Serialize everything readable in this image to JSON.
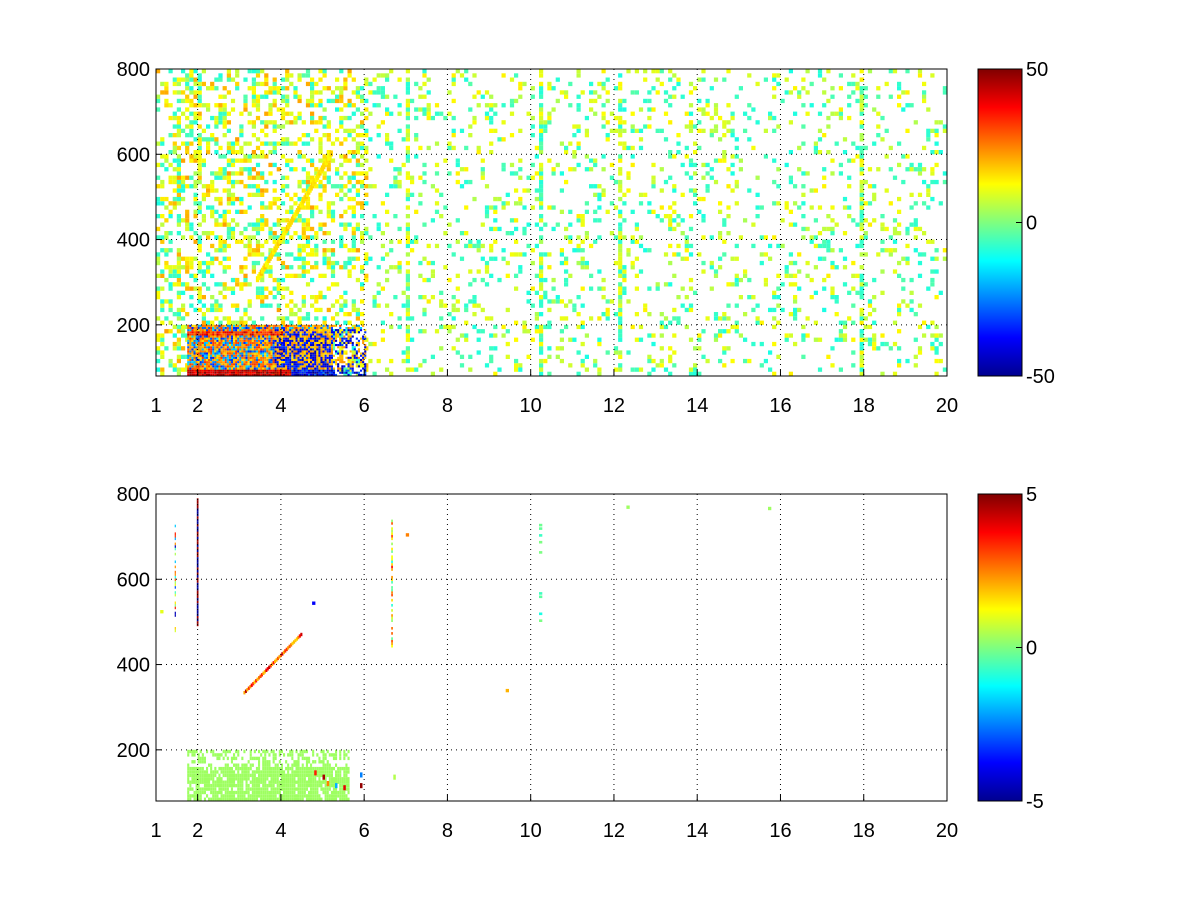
{
  "chart_data": [
    {
      "type": "heatmap",
      "title": "",
      "xlabel": "",
      "ylabel": "",
      "xlim": [
        1,
        20
      ],
      "ylim": [
        80,
        800
      ],
      "x_ticks": [
        1,
        2,
        4,
        6,
        8,
        10,
        12,
        14,
        16,
        18,
        20
      ],
      "y_ticks": [
        200,
        400,
        600,
        800
      ],
      "grid": true,
      "colormap": "jet",
      "clim": [
        -50,
        50
      ],
      "colorbar_ticks": [
        50,
        0,
        -50
      ],
      "colorbar_placement": "right",
      "description": "Dense noisy field of values; strong activity (up to +50 and down to -50) concentrated at x 2-5, y 80-200; sparse scattered near-zero/positive values elsewhere; diagonal band of positive values from about (3.5,300) to (5,600); vertical streaks near x 1.5, 2, 7, 10.2, 12, 18."
    },
    {
      "type": "heatmap",
      "title": "",
      "xlabel": "",
      "ylabel": "",
      "xlim": [
        1,
        20
      ],
      "ylim": [
        80,
        800
      ],
      "x_ticks": [
        1,
        2,
        4,
        6,
        8,
        10,
        12,
        14,
        16,
        18,
        20
      ],
      "y_ticks": [
        200,
        400,
        600,
        800
      ],
      "grid": true,
      "colormap": "jet",
      "clim": [
        -5,
        5
      ],
      "colorbar_ticks": [
        5,
        0,
        -5
      ],
      "colorbar_placement": "right",
      "description": "Mostly empty. Green (~0.3) block x 1.7-5.5, y 80-200; diagonal positive streak from about (3.1,330) to (4.5,470); vertical lines near x 1.5, 2 (y 480-790) and x 6.7 (y 440-730); small marks near x 10.2 (y 460-740); sparse dots elsewhere."
    }
  ]
}
